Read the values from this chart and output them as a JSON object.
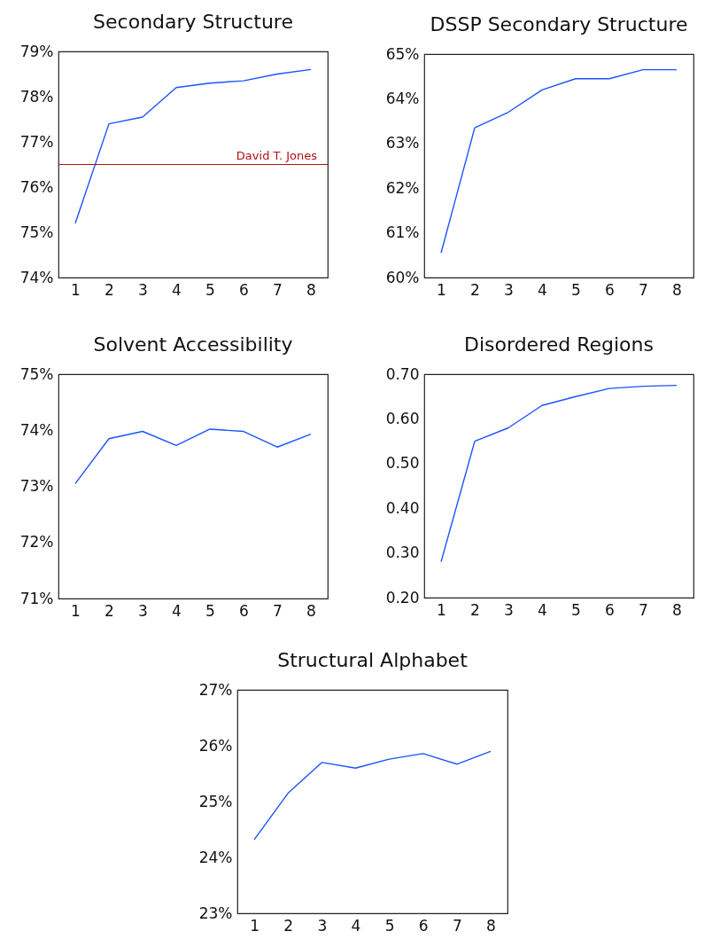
{
  "chart_data": [
    {
      "type": "line",
      "title": "Secondary Structure",
      "categories": [
        "1",
        "2",
        "3",
        "4",
        "5",
        "6",
        "7",
        "8"
      ],
      "series": [
        {
          "color": "#1a53ff",
          "values": [
            75.2,
            77.4,
            77.55,
            78.2,
            78.3,
            78.35,
            78.5,
            78.6
          ]
        }
      ],
      "ylim": [
        74,
        79
      ],
      "yticks": [
        {
          "value": 74,
          "label": "74%"
        },
        {
          "value": 75,
          "label": "75%"
        },
        {
          "value": 76,
          "label": "76%"
        },
        {
          "value": 77,
          "label": "77%"
        },
        {
          "value": 78,
          "label": "78%"
        },
        {
          "value": 79,
          "label": "79%"
        }
      ],
      "ref_lines": [
        {
          "axis": "y",
          "value": 76.5,
          "label": "David T. Jones",
          "color": "#b01010"
        }
      ],
      "grid": false
    },
    {
      "type": "line",
      "title": "DSSP Secondary Structure",
      "categories": [
        "1",
        "2",
        "3",
        "4",
        "5",
        "6",
        "7",
        "8"
      ],
      "series": [
        {
          "color": "#1a53ff",
          "values": [
            60.55,
            63.35,
            63.7,
            64.2,
            64.45,
            64.45,
            64.65,
            64.65
          ]
        }
      ],
      "ylim": [
        60,
        65
      ],
      "yticks": [
        {
          "value": 60,
          "label": "60%"
        },
        {
          "value": 61,
          "label": "61%"
        },
        {
          "value": 62,
          "label": "62%"
        },
        {
          "value": 63,
          "label": "63%"
        },
        {
          "value": 64,
          "label": "64%"
        },
        {
          "value": 65,
          "label": "65%"
        }
      ],
      "grid": false
    },
    {
      "type": "line",
      "title": "Solvent Accessibility",
      "categories": [
        "1",
        "2",
        "3",
        "4",
        "5",
        "6",
        "7",
        "8"
      ],
      "series": [
        {
          "color": "#1a53ff",
          "values": [
            73.05,
            73.85,
            73.98,
            73.73,
            74.02,
            73.98,
            73.7,
            73.93
          ]
        }
      ],
      "ylim": [
        71,
        75
      ],
      "yticks": [
        {
          "value": 71,
          "label": "71%"
        },
        {
          "value": 72,
          "label": "72%"
        },
        {
          "value": 73,
          "label": "73%"
        },
        {
          "value": 74,
          "label": "74%"
        },
        {
          "value": 75,
          "label": "75%"
        }
      ],
      "grid": false
    },
    {
      "type": "line",
      "title": "Disordered Regions",
      "categories": [
        "1",
        "2",
        "3",
        "4",
        "5",
        "6",
        "7",
        "8"
      ],
      "series": [
        {
          "color": "#1a53ff",
          "values": [
            0.28,
            0.55,
            0.58,
            0.63,
            0.65,
            0.668,
            0.673,
            0.675
          ]
        }
      ],
      "ylim": [
        0.2,
        0.7
      ],
      "yticks": [
        {
          "value": 0.2,
          "label": "0.20"
        },
        {
          "value": 0.3,
          "label": "0.30"
        },
        {
          "value": 0.4,
          "label": "0.40"
        },
        {
          "value": 0.5,
          "label": "0.50"
        },
        {
          "value": 0.6,
          "label": "0.60"
        },
        {
          "value": 0.7,
          "label": "0.70"
        }
      ],
      "grid": false
    },
    {
      "type": "line",
      "title": "Structural Alphabet",
      "categories": [
        "1",
        "2",
        "3",
        "4",
        "5",
        "6",
        "7",
        "8"
      ],
      "series": [
        {
          "color": "#1a53ff",
          "values": [
            24.32,
            25.15,
            25.7,
            25.6,
            25.76,
            25.86,
            25.67,
            25.9
          ]
        }
      ],
      "ylim": [
        23,
        27
      ],
      "yticks": [
        {
          "value": 23,
          "label": "23%"
        },
        {
          "value": 24,
          "label": "24%"
        },
        {
          "value": 25,
          "label": "25%"
        },
        {
          "value": 26,
          "label": "26%"
        },
        {
          "value": 27,
          "label": "27%"
        }
      ],
      "grid": false
    }
  ]
}
